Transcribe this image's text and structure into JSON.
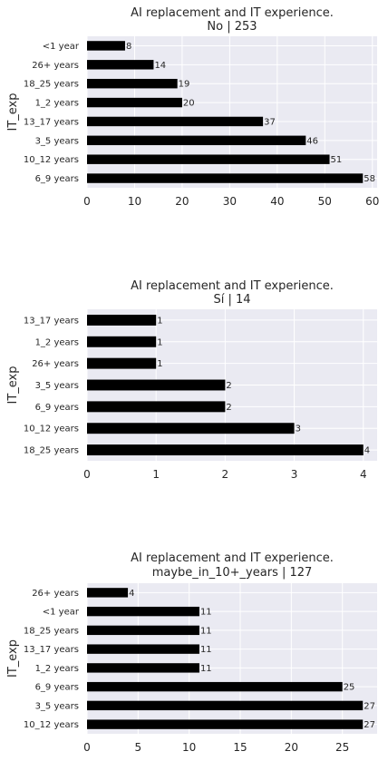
{
  "chart_data": [
    {
      "type": "bar",
      "orientation": "horizontal",
      "title_line1": "AI replacement and IT experience.",
      "title_line2": "No | 253",
      "ylabel": "IT_exp",
      "categories": [
        "<1 year",
        "26+ years",
        "18_25 years",
        "1_2 years",
        "13_17 years",
        "3_5 years",
        "10_12 years",
        "6_9 years"
      ],
      "values": [
        8,
        14,
        19,
        20,
        37,
        46,
        51,
        58
      ],
      "xlim": [
        0,
        61
      ],
      "xticks": [
        0,
        10,
        20,
        30,
        40,
        50,
        60
      ],
      "bar_color": "#000000",
      "background": "#eaeaf2",
      "grid": true
    },
    {
      "type": "bar",
      "orientation": "horizontal",
      "title_line1": "AI replacement and IT experience.",
      "title_line2": "Sí | 14",
      "ylabel": "IT_exp",
      "categories": [
        "13_17 years",
        "1_2 years",
        "26+ years",
        "3_5 years",
        "6_9 years",
        "10_12 years",
        "18_25 years"
      ],
      "values": [
        1,
        1,
        1,
        2,
        2,
        3,
        4
      ],
      "xlim": [
        0,
        4.2
      ],
      "xticks": [
        0,
        1,
        2,
        3,
        4
      ],
      "bar_color": "#000000",
      "background": "#eaeaf2",
      "grid": true
    },
    {
      "type": "bar",
      "orientation": "horizontal",
      "title_line1": "AI replacement and IT experience.",
      "title_line2": "maybe_in_10+_years | 127",
      "ylabel": "IT_exp",
      "categories": [
        "26+ years",
        "<1 year",
        "18_25 years",
        "13_17 years",
        "1_2 years",
        "6_9 years",
        "3_5 years",
        "10_12 years"
      ],
      "values": [
        4,
        11,
        11,
        11,
        11,
        25,
        27,
        27
      ],
      "xlim": [
        0,
        28.4
      ],
      "xticks": [
        0,
        5,
        10,
        15,
        20,
        25
      ],
      "bar_color": "#000000",
      "background": "#eaeaf2",
      "grid": true
    }
  ]
}
